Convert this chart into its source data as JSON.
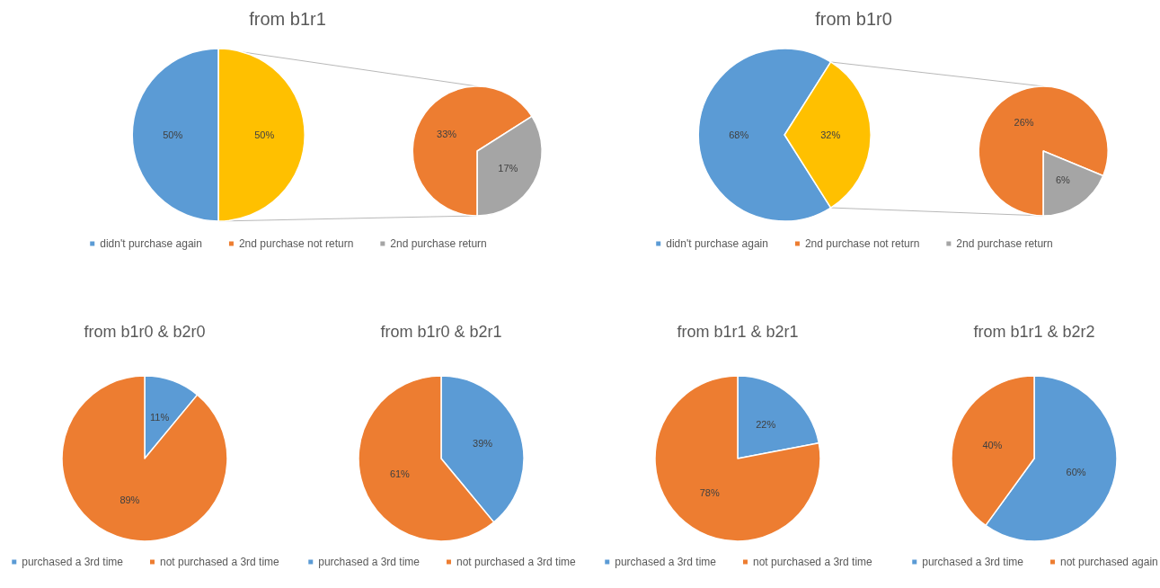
{
  "chart_data": [
    {
      "type": "pie",
      "title": "from b1r1",
      "categories": [
        "didn't purchase again",
        null,
        "2nd purchase not return",
        "2nd purchase return"
      ],
      "legend": "bottom",
      "series": [
        {
          "values": [
            50,
            50,
            null,
            null
          ],
          "colors": [
            "#5b9bd5",
            "#ffc000",
            null,
            null
          ],
          "value_labels": [
            "50%",
            "50%",
            null,
            null
          ]
        },
        {
          "values": [
            null,
            null,
            33,
            17
          ],
          "colors": [
            null,
            null,
            "#ed7d31",
            "#a5a5a5"
          ],
          "value_labels": [
            null,
            null,
            "33%",
            "17%"
          ]
        }
      ]
    },
    {
      "type": "pie",
      "title": "from b1r0",
      "categories": [
        "didn't purchase again",
        null,
        "2nd purchase not return",
        "2nd purchase return"
      ],
      "legend": "bottom",
      "series": [
        {
          "values": [
            68,
            32,
            null,
            null
          ],
          "colors": [
            "#5b9bd5",
            "#ffc000",
            null,
            null
          ],
          "value_labels": [
            "68%",
            "32%",
            null,
            null
          ]
        },
        {
          "values": [
            null,
            null,
            26,
            6
          ],
          "colors": [
            null,
            null,
            "#ed7d31",
            "#a5a5a5"
          ],
          "value_labels": [
            null,
            null,
            "26%",
            "6%"
          ]
        }
      ]
    },
    {
      "type": "pie",
      "title": "from b1r0 & b2r0",
      "categories": [
        "purchased a 3rd time",
        "not purchased a 3rd time"
      ],
      "values": [
        11,
        89
      ],
      "colors": [
        "#5b9bd5",
        "#ed7d31"
      ],
      "value_labels": [
        "11%",
        "89%"
      ],
      "legend": "bottom"
    },
    {
      "type": "pie",
      "title": "from b1r0 & b2r1",
      "categories": [
        "purchased a 3rd time",
        "not purchased a 3rd time"
      ],
      "values": [
        39,
        61
      ],
      "colors": [
        "#5b9bd5",
        "#ed7d31"
      ],
      "value_labels": [
        "39%",
        "61%"
      ],
      "legend": "bottom"
    },
    {
      "type": "pie",
      "title": "from b1r1 & b2r1",
      "categories": [
        "purchased a 3rd time",
        "not purchased a 3rd time"
      ],
      "values": [
        22,
        78
      ],
      "colors": [
        "#5b9bd5",
        "#ed7d31"
      ],
      "value_labels": [
        "22%",
        "78%"
      ],
      "legend": "bottom"
    },
    {
      "type": "pie",
      "title": "from b1r1 & b2r2",
      "categories": [
        "purchased a 3rd time",
        "not purchased again"
      ],
      "values": [
        60,
        40
      ],
      "colors": [
        "#5b9bd5",
        "#ed7d31"
      ],
      "value_labels": [
        "60%",
        "40%"
      ],
      "legend": "bottom"
    }
  ]
}
